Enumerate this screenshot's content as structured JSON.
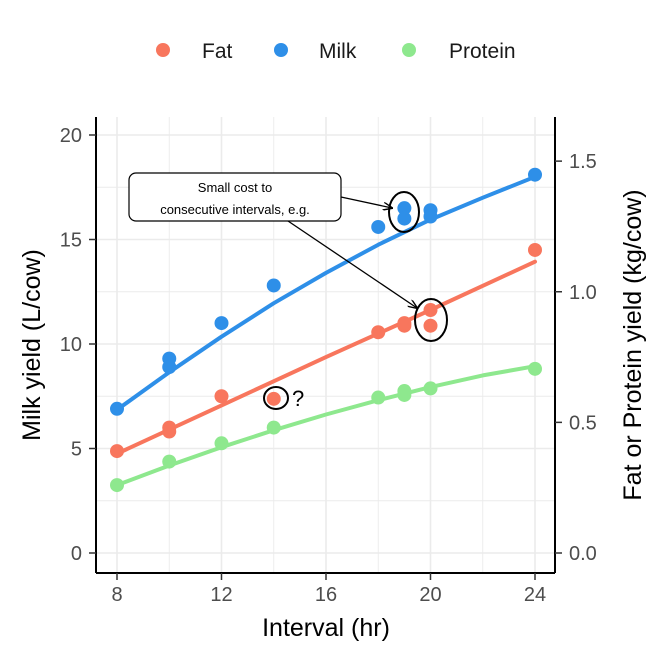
{
  "chart_data": {
    "type": "scatter",
    "xlabel": "Interval (hr)",
    "ylabel": "Milk yield (L/cow)",
    "y2label": "Fat or Protein yield (kg/cow)",
    "xlim": [
      8,
      24
    ],
    "ylim": [
      0,
      20
    ],
    "y2lim": [
      0,
      1.6
    ],
    "xticks": [
      8,
      12,
      16,
      20,
      24
    ],
    "yticks": [
      0,
      5,
      10,
      15,
      20
    ],
    "y2ticks": [
      0.0,
      0.5,
      1.0,
      1.5
    ],
    "xtick_labels": [
      "8",
      "12",
      "16",
      "20",
      "24"
    ],
    "ytick_labels": [
      "0",
      "5",
      "10",
      "15",
      "20"
    ],
    "y2tick_labels": [
      "0.0",
      "0.5",
      "1.0",
      "1.5"
    ],
    "grid": true,
    "legend_position": "top",
    "legend": [
      "Fat",
      "Milk",
      "Protein"
    ],
    "series": [
      {
        "name": "Fat",
        "axis": "right",
        "color": "#F8765D",
        "points": [
          {
            "x": 8,
            "y": 0.39
          },
          {
            "x": 10,
            "y": 0.48
          },
          {
            "x": 10,
            "y": 0.465
          },
          {
            "x": 12,
            "y": 0.6
          },
          {
            "x": 14,
            "y": 0.59
          },
          {
            "x": 18,
            "y": 0.845
          },
          {
            "x": 19,
            "y": 0.87
          },
          {
            "x": 19,
            "y": 0.88
          },
          {
            "x": 20,
            "y": 0.93
          },
          {
            "x": 20,
            "y": 0.87
          },
          {
            "x": 24,
            "y": 1.16
          }
        ],
        "fit": [
          {
            "x": 8,
            "y": 0.38
          },
          {
            "x": 12,
            "y": 0.565
          },
          {
            "x": 16,
            "y": 0.75
          },
          {
            "x": 20,
            "y": 0.93
          },
          {
            "x": 24,
            "y": 1.115
          }
        ]
      },
      {
        "name": "Milk",
        "axis": "left",
        "color": "#2E8FE8",
        "points": [
          {
            "x": 8,
            "y": 6.9
          },
          {
            "x": 10,
            "y": 9.3
          },
          {
            "x": 10,
            "y": 8.9
          },
          {
            "x": 12,
            "y": 11.0
          },
          {
            "x": 14,
            "y": 12.8
          },
          {
            "x": 18,
            "y": 15.6
          },
          {
            "x": 19,
            "y": 16.5
          },
          {
            "x": 19,
            "y": 16.0
          },
          {
            "x": 20,
            "y": 16.4
          },
          {
            "x": 20,
            "y": 16.1
          },
          {
            "x": 24,
            "y": 18.1
          }
        ],
        "fit": [
          {
            "x": 8,
            "y": 6.85
          },
          {
            "x": 10,
            "y": 8.65
          },
          {
            "x": 12,
            "y": 10.35
          },
          {
            "x": 14,
            "y": 11.95
          },
          {
            "x": 16,
            "y": 13.4
          },
          {
            "x": 18,
            "y": 14.75
          },
          {
            "x": 20,
            "y": 15.95
          },
          {
            "x": 22,
            "y": 17.0
          },
          {
            "x": 24,
            "y": 18.0
          }
        ]
      },
      {
        "name": "Protein",
        "axis": "right",
        "color": "#8EE88E",
        "points": [
          {
            "x": 8,
            "y": 0.26
          },
          {
            "x": 10,
            "y": 0.35
          },
          {
            "x": 12,
            "y": 0.42
          },
          {
            "x": 14,
            "y": 0.48
          },
          {
            "x": 18,
            "y": 0.595
          },
          {
            "x": 19,
            "y": 0.62
          },
          {
            "x": 19,
            "y": 0.605
          },
          {
            "x": 20,
            "y": 0.63
          },
          {
            "x": 24,
            "y": 0.705
          }
        ],
        "fit": [
          {
            "x": 8,
            "y": 0.26
          },
          {
            "x": 10,
            "y": 0.335
          },
          {
            "x": 12,
            "y": 0.405
          },
          {
            "x": 14,
            "y": 0.47
          },
          {
            "x": 16,
            "y": 0.53
          },
          {
            "x": 18,
            "y": 0.585
          },
          {
            "x": 20,
            "y": 0.635
          },
          {
            "x": 22,
            "y": 0.68
          },
          {
            "x": 24,
            "y": 0.715
          }
        ]
      }
    ],
    "annotations": {
      "callout_line1": "Small cost to",
      "callout_line2": "consecutive intervals, e.g.",
      "question_mark": "?"
    }
  }
}
